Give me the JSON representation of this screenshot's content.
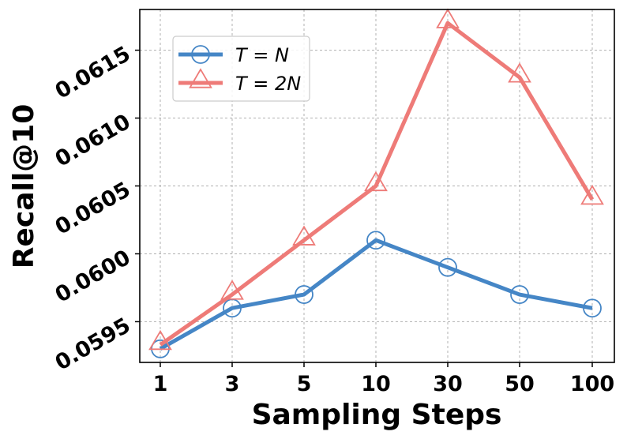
{
  "chart_data": {
    "type": "line",
    "title": "",
    "xlabel": "Sampling Steps",
    "ylabel": "Recall@10",
    "categories": [
      "1",
      "3",
      "5",
      "10",
      "30",
      "50",
      "100"
    ],
    "ylim": [
      0.0592,
      0.0618
    ],
    "yticks": [
      0.0595,
      0.06,
      0.0605,
      0.061,
      0.0615
    ],
    "ytick_labels": [
      "0.0595",
      "0.0600",
      "0.0605",
      "0.0610",
      "0.0615"
    ],
    "grid": true,
    "legend_position": "upper-left",
    "series": [
      {
        "name": "T = N",
        "legend_label": "T = N",
        "marker": "circle",
        "color": "#4586c6",
        "values": [
          0.0593,
          0.0596,
          0.0597,
          0.0601,
          0.0599,
          0.0597,
          0.0596
        ]
      },
      {
        "name": "T = 2N",
        "legend_label": "T = 2N",
        "marker": "triangle",
        "color": "#ee7b78",
        "values": [
          0.05933,
          0.0597,
          0.0601,
          0.0605,
          0.0617,
          0.0613,
          0.0604
        ]
      }
    ]
  }
}
